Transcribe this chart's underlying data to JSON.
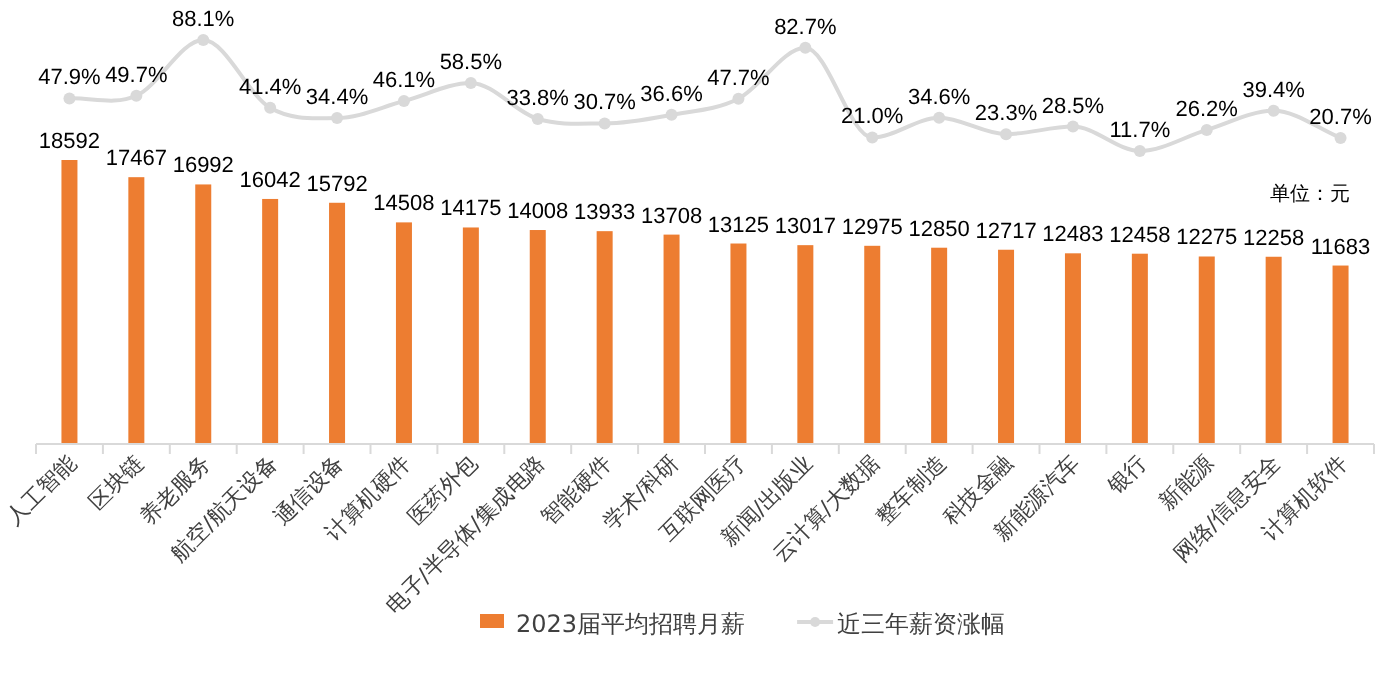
{
  "chart_data": [
    {
      "type": "line",
      "categories": [
        "人工智能",
        "区块链",
        "养老服务",
        "航空/航天设备",
        "通信设备",
        "计算机硬件",
        "医药外包",
        "电子/半导体/集成电路",
        "智能硬件",
        "学术/科研",
        "互联网医疗",
        "新闻/出版业",
        "云计算/大数据",
        "整车制造",
        "科技金融",
        "新能源汽车",
        "银行",
        "新能源",
        "网络/信息安全",
        "计算机软件"
      ],
      "tick_labels": false,
      "series": [
        {
          "name": "近三年薪资涨幅",
          "color": "#d9d9d9",
          "values": [
            47.9,
            49.7,
            88.1,
            41.4,
            34.4,
            46.1,
            58.5,
            33.8,
            30.7,
            36.6,
            47.7,
            82.7,
            21.0,
            34.6,
            23.3,
            28.5,
            11.7,
            26.2,
            39.4,
            20.7
          ],
          "value_labels": [
            "47.9%",
            "49.7%",
            "88.1%",
            "41.4%",
            "34.4%",
            "46.1%",
            "58.5%",
            "33.8%",
            "30.7%",
            "36.6%",
            "47.7%",
            "82.7%",
            "21.0%",
            "34.6%",
            "23.3%",
            "28.5%",
            "11.7%",
            "26.2%",
            "39.4%",
            "20.7%"
          ]
        }
      ],
      "marker": "circle",
      "legend": "bottom"
    },
    {
      "type": "bar",
      "categories": [
        "人工智能",
        "区块链",
        "养老服务",
        "航空/航天设备",
        "通信设备",
        "计算机硬件",
        "医药外包",
        "电子/半导体/集成电路",
        "智能硬件",
        "学术/科研",
        "互联网医疗",
        "新闻/出版业",
        "云计算/大数据",
        "整车制造",
        "科技金融",
        "新能源汽车",
        "银行",
        "新能源",
        "网络/信息安全",
        "计算机软件"
      ],
      "series": [
        {
          "name": "2023届平均招聘月薪",
          "color": "#ed7d31",
          "values": [
            18592,
            17467,
            16992,
            16042,
            15792,
            14508,
            14175,
            14008,
            13933,
            13708,
            13125,
            13017,
            12975,
            12850,
            12717,
            12483,
            12458,
            12275,
            12258,
            11683
          ]
        }
      ],
      "data_labels": true,
      "legend": "bottom",
      "annotations": [
        "单位：元"
      ]
    }
  ]
}
